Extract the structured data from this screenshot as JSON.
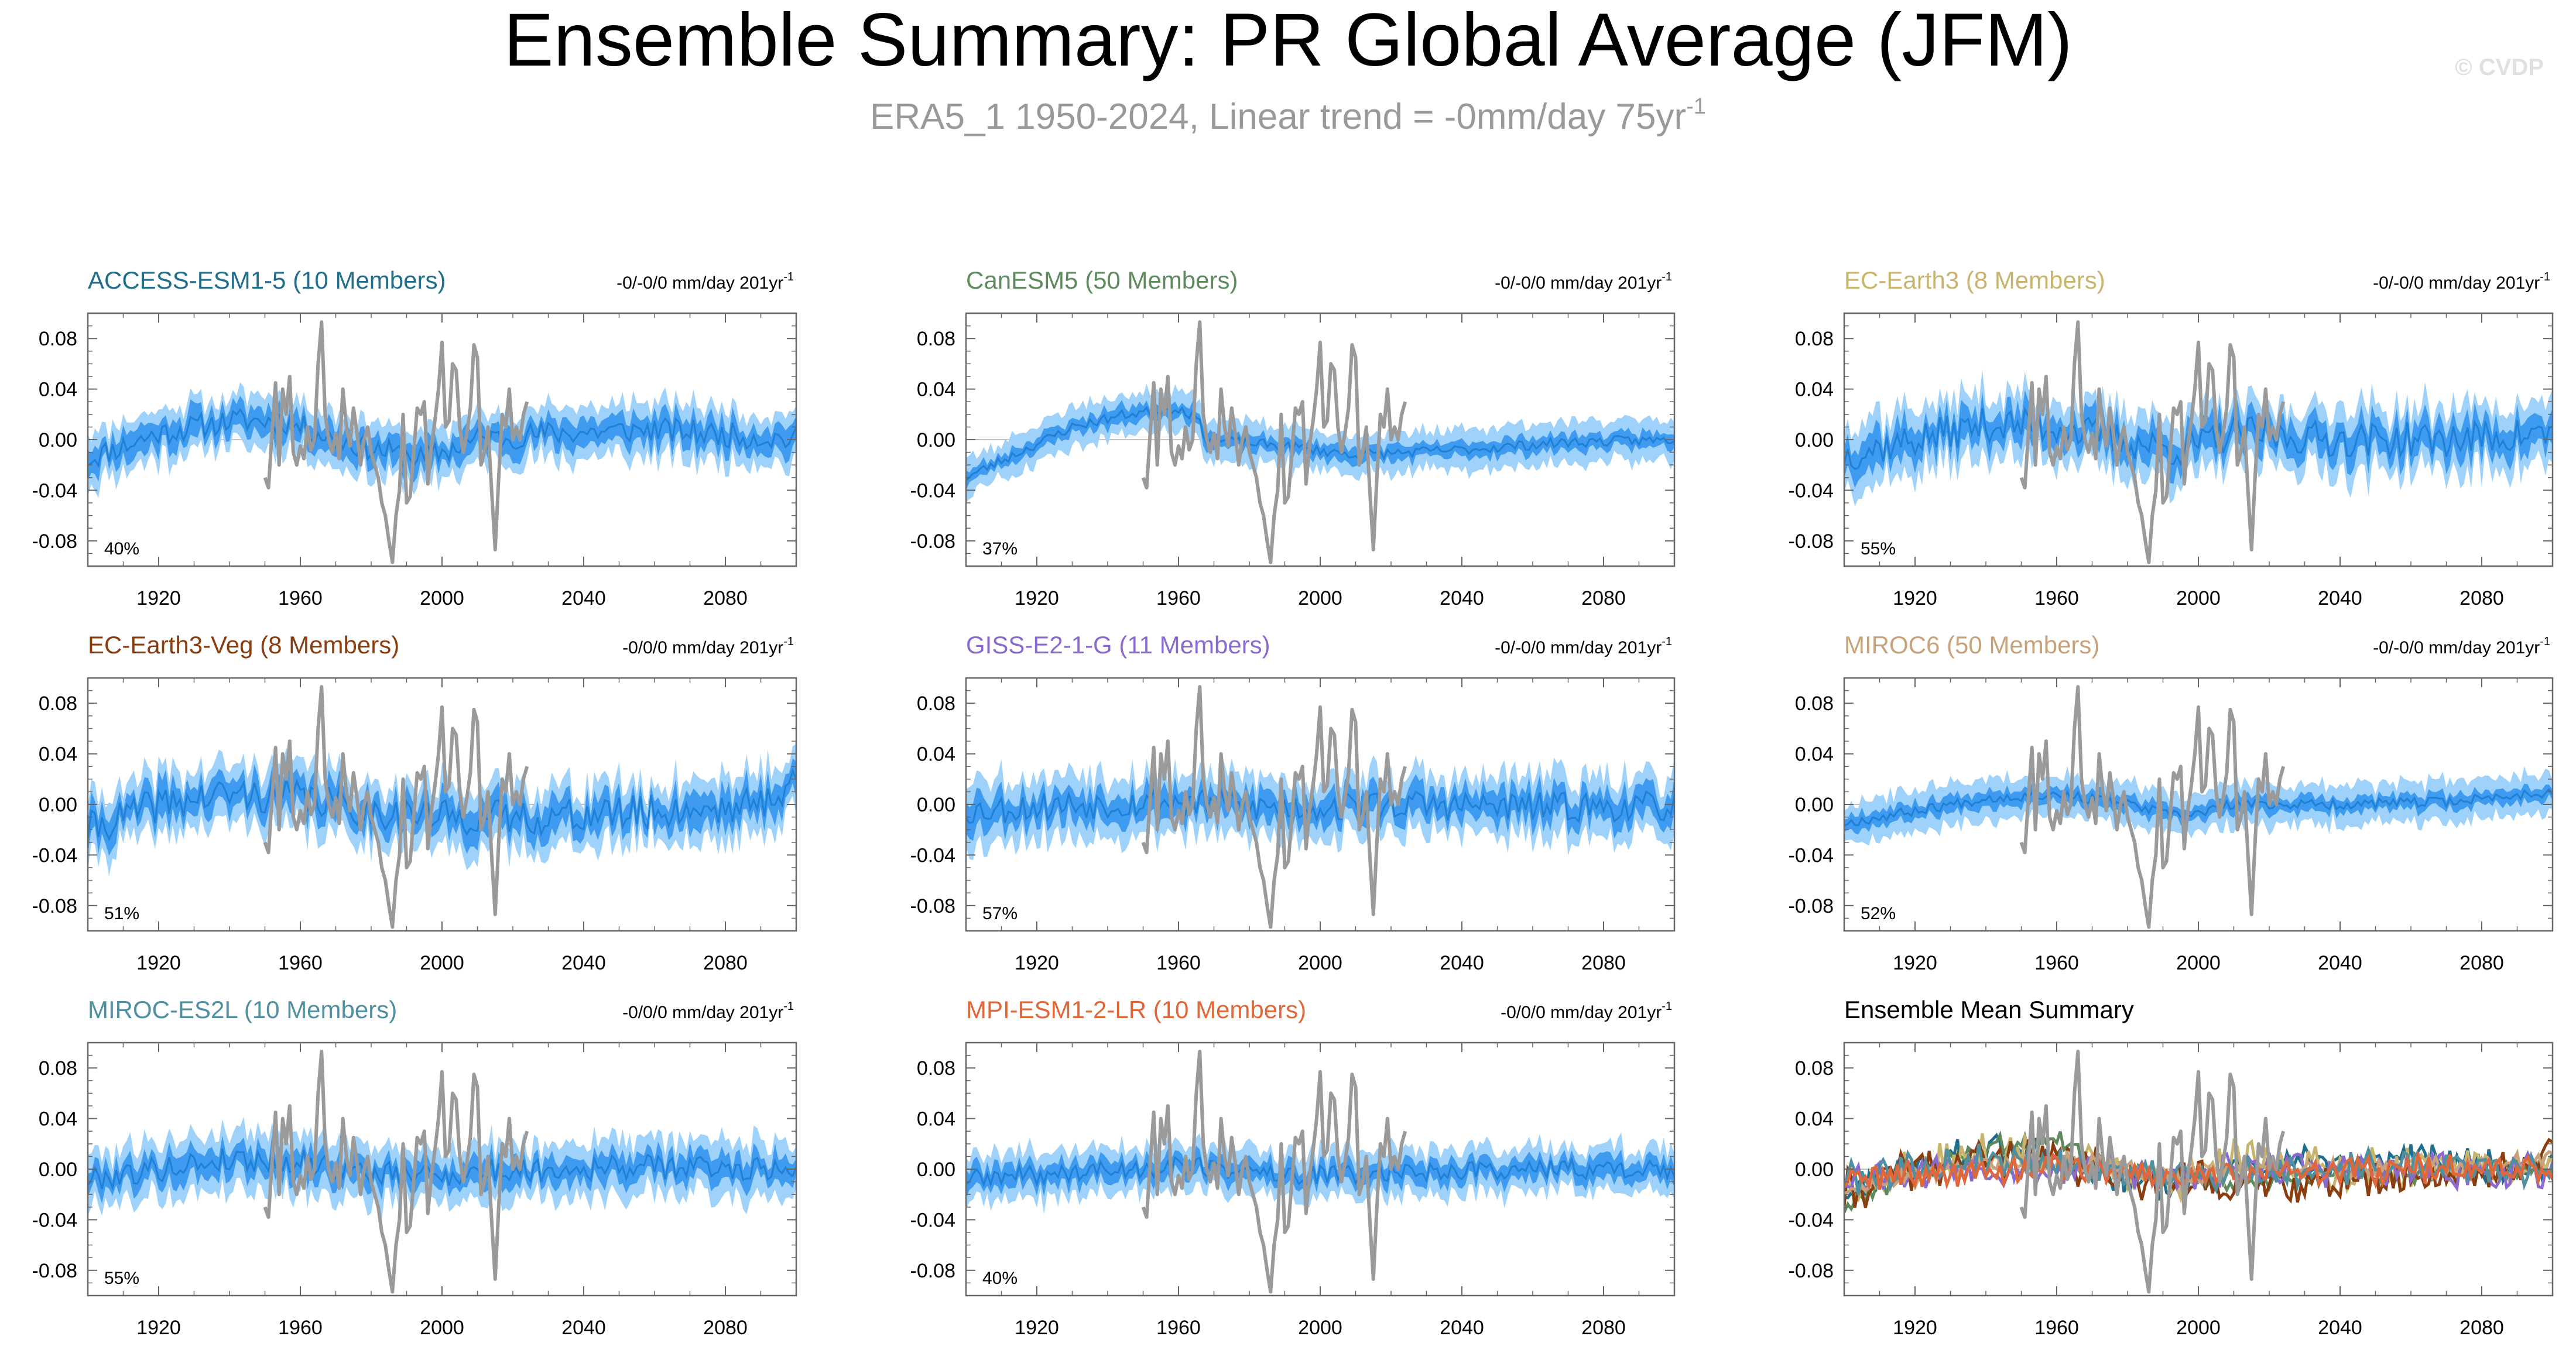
{
  "page": {
    "title": "Ensemble Summary: PR Global Average (JFM)",
    "subtitle_main": "ERA5_1 1950-2024, Linear trend = -0mm/day 75yr",
    "subtitle_sup": "-1",
    "watermark": "© CVDP"
  },
  "colors": {
    "band_outer": "#9ed2fb",
    "band_inner": "#3f9bf0",
    "ensemble_mean": "#1f80d6",
    "observations": "#9a9a9a",
    "zero_line": "#bfbfbf",
    "axis": "#666666"
  },
  "chart_data": [
    {
      "type": "area",
      "panel": "ACCESS-ESM1-5",
      "title": "ACCESS-ESM1-5 (10 Members)",
      "title_color": "#1f6e8c",
      "trend_main": "-0/-0/0 mm/day 201yr",
      "trend_sup": "-1",
      "percent_label": "40%",
      "xlim": [
        1900,
        2100
      ],
      "ylim": [
        -0.1,
        0.1
      ],
      "yticks": [
        0.08,
        0.04,
        0.0,
        -0.04,
        -0.08
      ],
      "ytick_labels": [
        "0.08",
        "0.04",
        "0.00",
        "-0.04",
        "-0.08"
      ],
      "xticks": [
        1920,
        1960,
        2000,
        2040,
        2080
      ],
      "xtick_labels": [
        "1920",
        "1960",
        "2000",
        "2040",
        "2080"
      ],
      "mean_anchors": [
        [
          1900,
          -0.015
        ],
        [
          1920,
          0.005
        ],
        [
          1940,
          0.015
        ],
        [
          1955,
          0.015
        ],
        [
          1970,
          0.0
        ],
        [
          1985,
          -0.01
        ],
        [
          1995,
          -0.015
        ],
        [
          2010,
          0.0
        ],
        [
          2030,
          0.005
        ],
        [
          2060,
          0.008
        ],
        [
          2100,
          0.0
        ]
      ],
      "inner_halfwidth": 0.01,
      "outer_halfwidth": 0.02,
      "noise": 0.01,
      "seed": 11
    },
    {
      "type": "area",
      "panel": "CanESM5",
      "title": "CanESM5 (50 Members)",
      "title_color": "#5e8a5e",
      "trend_main": "-0/-0/0 mm/day 201yr",
      "trend_sup": "-1",
      "percent_label": "37%",
      "xlim": [
        1900,
        2100
      ],
      "ylim": [
        -0.1,
        0.1
      ],
      "yticks": [
        0.08,
        0.04,
        0.0,
        -0.04,
        -0.08
      ],
      "ytick_labels": [
        "0.08",
        "0.04",
        "0.00",
        "-0.04",
        "-0.08"
      ],
      "xticks": [
        1920,
        1960,
        2000,
        2040,
        2080
      ],
      "xtick_labels": [
        "1920",
        "1960",
        "2000",
        "2040",
        "2080"
      ],
      "mean_anchors": [
        [
          1900,
          -0.03
        ],
        [
          1915,
          -0.01
        ],
        [
          1930,
          0.01
        ],
        [
          1945,
          0.02
        ],
        [
          1960,
          0.025
        ],
        [
          1965,
          0.018
        ],
        [
          1968,
          0.0
        ],
        [
          1990,
          -0.005
        ],
        [
          2010,
          -0.012
        ],
        [
          2040,
          -0.008
        ],
        [
          2070,
          -0.002
        ],
        [
          2100,
          0.0
        ]
      ],
      "inner_halfwidth": 0.006,
      "outer_halfwidth": 0.016,
      "noise": 0.004,
      "seed": 23
    },
    {
      "type": "area",
      "panel": "EC-Earth3",
      "title": "EC-Earth3 (8 Members)",
      "title_color": "#c8b46c",
      "trend_main": "-0/-0/0 mm/day 201yr",
      "trend_sup": "-1",
      "percent_label": "55%",
      "xlim": [
        1900,
        2100
      ],
      "ylim": [
        -0.1,
        0.1
      ],
      "yticks": [
        0.08,
        0.04,
        0.0,
        -0.04,
        -0.08
      ],
      "ytick_labels": [
        "0.08",
        "0.04",
        "0.00",
        "-0.04",
        "-0.08"
      ],
      "xticks": [
        1920,
        1960,
        2000,
        2040,
        2080
      ],
      "xtick_labels": [
        "1920",
        "1960",
        "2000",
        "2040",
        "2080"
      ],
      "mean_anchors": [
        [
          1900,
          -0.012
        ],
        [
          1920,
          0.0
        ],
        [
          1940,
          0.012
        ],
        [
          1960,
          0.01
        ],
        [
          1980,
          -0.002
        ],
        [
          1995,
          -0.008
        ],
        [
          2010,
          0.005
        ],
        [
          2040,
          0.0
        ],
        [
          2070,
          0.0
        ],
        [
          2100,
          0.005
        ]
      ],
      "inner_halfwidth": 0.012,
      "outer_halfwidth": 0.025,
      "noise": 0.014,
      "seed": 37
    },
    {
      "type": "area",
      "panel": "EC-Earth3-Veg",
      "title": "EC-Earth3-Veg (8 Members)",
      "title_color": "#8a3e0f",
      "trend_main": "-0/0/0 mm/day 201yr",
      "trend_sup": "-1",
      "percent_label": "51%",
      "xlim": [
        1900,
        2100
      ],
      "ylim": [
        -0.1,
        0.1
      ],
      "yticks": [
        0.08,
        0.04,
        0.0,
        -0.04,
        -0.08
      ],
      "ytick_labels": [
        "0.08",
        "0.04",
        "0.00",
        "-0.04",
        "-0.08"
      ],
      "xticks": [
        1920,
        1960,
        2000,
        2040,
        2080
      ],
      "xtick_labels": [
        "1920",
        "1960",
        "2000",
        "2040",
        "2080"
      ],
      "mean_anchors": [
        [
          1900,
          -0.02
        ],
        [
          1920,
          0.0
        ],
        [
          1940,
          0.008
        ],
        [
          1960,
          0.006
        ],
        [
          1980,
          -0.005
        ],
        [
          2000,
          -0.01
        ],
        [
          2030,
          -0.01
        ],
        [
          2060,
          -0.006
        ],
        [
          2090,
          0.0
        ],
        [
          2100,
          0.02
        ]
      ],
      "inner_halfwidth": 0.012,
      "outer_halfwidth": 0.024,
      "noise": 0.014,
      "seed": 41
    },
    {
      "type": "area",
      "panel": "GISS-E2-1-G",
      "title": "GISS-E2-1-G (11 Members)",
      "title_color": "#8a6ad1",
      "trend_main": "-0/-0/0 mm/day 201yr",
      "trend_sup": "-1",
      "percent_label": "57%",
      "xlim": [
        1900,
        2100
      ],
      "ylim": [
        -0.1,
        0.1
      ],
      "yticks": [
        0.08,
        0.04,
        0.0,
        -0.04,
        -0.08
      ],
      "ytick_labels": [
        "0.08",
        "0.04",
        "0.00",
        "-0.04",
        "-0.08"
      ],
      "xticks": [
        1920,
        1960,
        2000,
        2040,
        2080
      ],
      "xtick_labels": [
        "1920",
        "1960",
        "2000",
        "2040",
        "2080"
      ],
      "mean_anchors": [
        [
          1900,
          -0.005
        ],
        [
          1930,
          0.0
        ],
        [
          1960,
          0.002
        ],
        [
          1990,
          -0.003
        ],
        [
          2020,
          0.0
        ],
        [
          2060,
          -0.002
        ],
        [
          2100,
          -0.002
        ]
      ],
      "inner_halfwidth": 0.011,
      "outer_halfwidth": 0.024,
      "noise": 0.012,
      "seed": 53
    },
    {
      "type": "area",
      "panel": "MIROC6",
      "title": "MIROC6 (50 Members)",
      "title_color": "#c7a27a",
      "trend_main": "-0/-0/0 mm/day 201yr",
      "trend_sup": "-1",
      "percent_label": "52%",
      "xlim": [
        1900,
        2100
      ],
      "ylim": [
        -0.1,
        0.1
      ],
      "yticks": [
        0.08,
        0.04,
        0.0,
        -0.04,
        -0.08
      ],
      "ytick_labels": [
        "0.08",
        "0.04",
        "0.00",
        "-0.04",
        "-0.08"
      ],
      "xticks": [
        1920,
        1960,
        2000,
        2040,
        2080
      ],
      "xtick_labels": [
        "1920",
        "1960",
        "2000",
        "2040",
        "2080"
      ],
      "mean_anchors": [
        [
          1900,
          -0.015
        ],
        [
          1920,
          -0.005
        ],
        [
          1940,
          0.005
        ],
        [
          1960,
          0.008
        ],
        [
          1980,
          0.0
        ],
        [
          1995,
          -0.01
        ],
        [
          2010,
          0.0
        ],
        [
          2040,
          0.0
        ],
        [
          2070,
          0.002
        ],
        [
          2100,
          0.01
        ]
      ],
      "inner_halfwidth": 0.006,
      "outer_halfwidth": 0.016,
      "noise": 0.004,
      "seed": 67
    },
    {
      "type": "area",
      "panel": "MIROC-ES2L",
      "title": "MIROC-ES2L (10 Members)",
      "title_color": "#4f8fa0",
      "trend_main": "-0/0/0 mm/day 201yr",
      "trend_sup": "-1",
      "percent_label": "55%",
      "xlim": [
        1900,
        2100
      ],
      "ylim": [
        -0.1,
        0.1
      ],
      "yticks": [
        0.08,
        0.04,
        0.0,
        -0.04,
        -0.08
      ],
      "ytick_labels": [
        "0.08",
        "0.04",
        "0.00",
        "-0.04",
        "-0.08"
      ],
      "xticks": [
        1920,
        1960,
        2000,
        2040,
        2080
      ],
      "xtick_labels": [
        "1920",
        "1960",
        "2000",
        "2040",
        "2080"
      ],
      "mean_anchors": [
        [
          1900,
          -0.008
        ],
        [
          1920,
          0.0
        ],
        [
          1940,
          0.008
        ],
        [
          1960,
          0.006
        ],
        [
          1980,
          -0.004
        ],
        [
          2000,
          -0.004
        ],
        [
          2030,
          0.0
        ],
        [
          2060,
          0.002
        ],
        [
          2100,
          0.0
        ]
      ],
      "inner_halfwidth": 0.01,
      "outer_halfwidth": 0.022,
      "noise": 0.01,
      "seed": 79
    },
    {
      "type": "area",
      "panel": "MPI-ESM1-2-LR",
      "title": "MPI-ESM1-2-LR (10 Members)",
      "title_color": "#e0673a",
      "trend_main": "-0/0/0 mm/day 201yr",
      "trend_sup": "-1",
      "percent_label": "40%",
      "xlim": [
        1900,
        2100
      ],
      "ylim": [
        -0.1,
        0.1
      ],
      "yticks": [
        0.08,
        0.04,
        0.0,
        -0.04,
        -0.08
      ],
      "ytick_labels": [
        "0.08",
        "0.04",
        "0.00",
        "-0.04",
        "-0.08"
      ],
      "xticks": [
        1920,
        1960,
        2000,
        2040,
        2080
      ],
      "xtick_labels": [
        "1920",
        "1960",
        "2000",
        "2040",
        "2080"
      ],
      "mean_anchors": [
        [
          1900,
          -0.008
        ],
        [
          1930,
          -0.003
        ],
        [
          1960,
          0.003
        ],
        [
          1975,
          0.0
        ],
        [
          1995,
          -0.006
        ],
        [
          2020,
          -0.002
        ],
        [
          2060,
          0.0
        ],
        [
          2100,
          0.0
        ]
      ],
      "inner_halfwidth": 0.008,
      "outer_halfwidth": 0.018,
      "noise": 0.008,
      "seed": 89
    },
    {
      "type": "line",
      "panel": "Ensemble Mean Summary",
      "title": "Ensemble Mean Summary",
      "title_color": "#000000",
      "trend_main": "",
      "trend_sup": "",
      "percent_label": "",
      "xlim": [
        1900,
        2100
      ],
      "ylim": [
        -0.1,
        0.1
      ],
      "yticks": [
        0.08,
        0.04,
        0.0,
        -0.04,
        -0.08
      ],
      "ytick_labels": [
        "0.08",
        "0.04",
        "0.00",
        "-0.04",
        "-0.08"
      ],
      "xticks": [
        1920,
        1960,
        2000,
        2040,
        2080
      ],
      "xtick_labels": [
        "1920",
        "1960",
        "2000",
        "2040",
        "2080"
      ],
      "series_colors": [
        "#1f6e8c",
        "#5e8a5e",
        "#c8b46c",
        "#8a3e0f",
        "#8a6ad1",
        "#c7a27a",
        "#4f8fa0",
        "#e0673a"
      ],
      "noise": 0.005,
      "seed": 97
    }
  ],
  "observations": {
    "name": "ERA5_1",
    "years": [
      1950,
      1951,
      1952,
      1953,
      1954,
      1955,
      1956,
      1957,
      1958,
      1959,
      1960,
      1961,
      1962,
      1963,
      1964,
      1965,
      1966,
      1967,
      1968,
      1969,
      1970,
      1971,
      1972,
      1973,
      1974,
      1975,
      1976,
      1977,
      1978,
      1979,
      1980,
      1981,
      1982,
      1983,
      1984,
      1985,
      1986,
      1987,
      1988,
      1989,
      1990,
      1991,
      1992,
      1993,
      1994,
      1995,
      1996,
      1997,
      1998,
      1999,
      2000,
      2001,
      2002,
      2003,
      2004,
      2005,
      2006,
      2007,
      2008,
      2009,
      2010,
      2011,
      2012,
      2013,
      2014,
      2015,
      2016,
      2017,
      2018,
      2019,
      2020,
      2021,
      2022,
      2023,
      2024
    ],
    "values": [
      -0.03,
      -0.038,
      0.005,
      0.045,
      -0.02,
      0.04,
      0.02,
      0.05,
      -0.01,
      -0.02,
      -0.005,
      -0.015,
      0.01,
      -0.008,
      0.0,
      0.06,
      0.093,
      0.02,
      0.0,
      -0.01,
      0.005,
      -0.015,
      0.04,
      0.01,
      -0.005,
      0.025,
      0.005,
      -0.02,
      0.0,
      0.01,
      -0.01,
      -0.02,
      -0.03,
      -0.05,
      -0.06,
      -0.08,
      -0.097,
      -0.06,
      -0.04,
      0.02,
      -0.05,
      -0.045,
      -0.01,
      0.025,
      0.02,
      0.03,
      -0.035,
      -0.005,
      0.015,
      0.04,
      0.077,
      0.01,
      0.015,
      0.06,
      0.055,
      0.01,
      -0.01,
      0.005,
      0.025,
      0.075,
      0.065,
      -0.02,
      -0.01,
      0.01,
      -0.04,
      -0.087,
      -0.03,
      0.02,
      0.01,
      0.04,
      0.0,
      0.01,
      0.0,
      0.02,
      0.03
    ]
  }
}
